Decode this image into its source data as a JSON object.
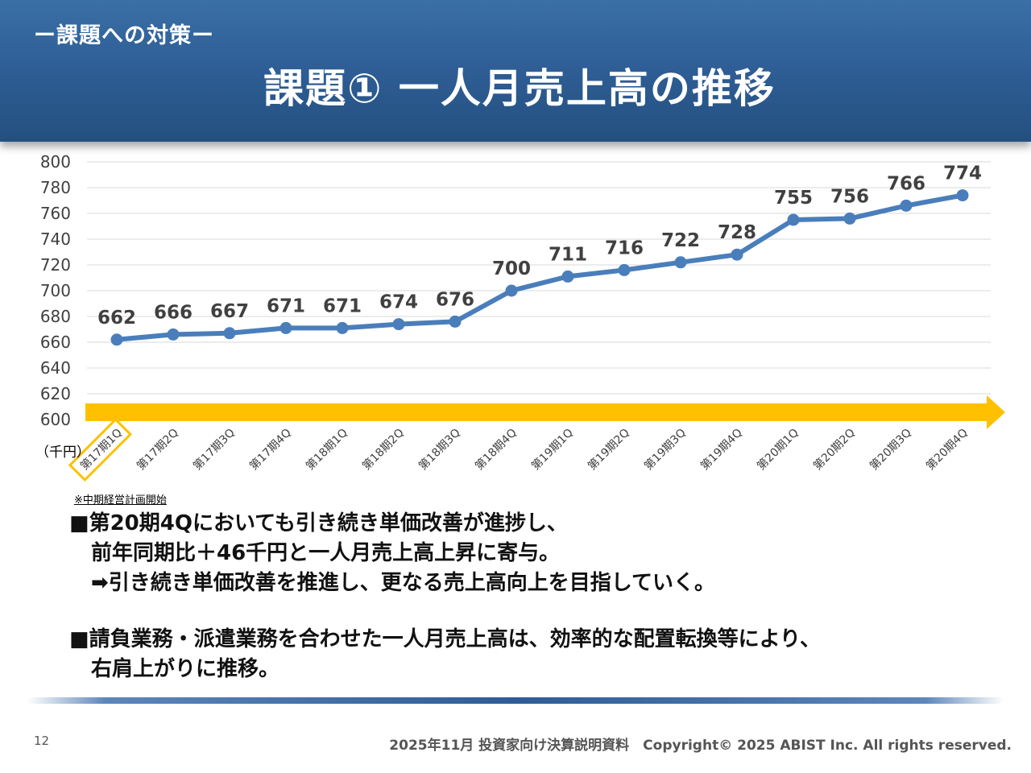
{
  "header": {
    "subtitle": "ー課題への対策ー",
    "title": "課題① 一人月売上高の推移"
  },
  "chart_data": {
    "type": "line",
    "categories": [
      "第17期1Q",
      "第17期2Q",
      "第17期3Q",
      "第17期4Q",
      "第18期1Q",
      "第18期2Q",
      "第18期3Q",
      "第18期4Q",
      "第19期1Q",
      "第19期2Q",
      "第19期3Q",
      "第19期4Q",
      "第20期1Q",
      "第20期2Q",
      "第20期3Q",
      "第20期4Q"
    ],
    "values": [
      662,
      666,
      667,
      671,
      671,
      674,
      676,
      700,
      711,
      716,
      722,
      728,
      755,
      756,
      766,
      774
    ],
    "unit_label": "（千円）",
    "ylim": [
      600,
      800
    ],
    "yticks": [
      600,
      620,
      640,
      660,
      680,
      700,
      720,
      740,
      760,
      780,
      800
    ],
    "grid": true,
    "highlight_category": "第17期1Q",
    "colors": {
      "line": "#4a7ebb",
      "arrow": "#ffc000",
      "highlight_box": "#ffc000"
    }
  },
  "note": "※中期経営計画開始",
  "bullets": {
    "b1_line1": "■第20期4Qにおいても引き続き単価改善が進捗し、",
    "b1_line2": "前年同期比＋46千円と一人月売上高上昇に寄与。",
    "b1_line3": "➡引き続き単価改善を推進し、更なる売上高向上を目指していく。",
    "b2_line1": "■請負業務・派遣業務を合わせた一人月売上高は、効率的な配置転換等により、",
    "b2_line2": "右肩上がりに推移。"
  },
  "footer": {
    "page": "12",
    "copyright": "2025年11月 投資家向け決算説明資料　Copyright© 2025 ABIST Inc. All rights reserved."
  }
}
